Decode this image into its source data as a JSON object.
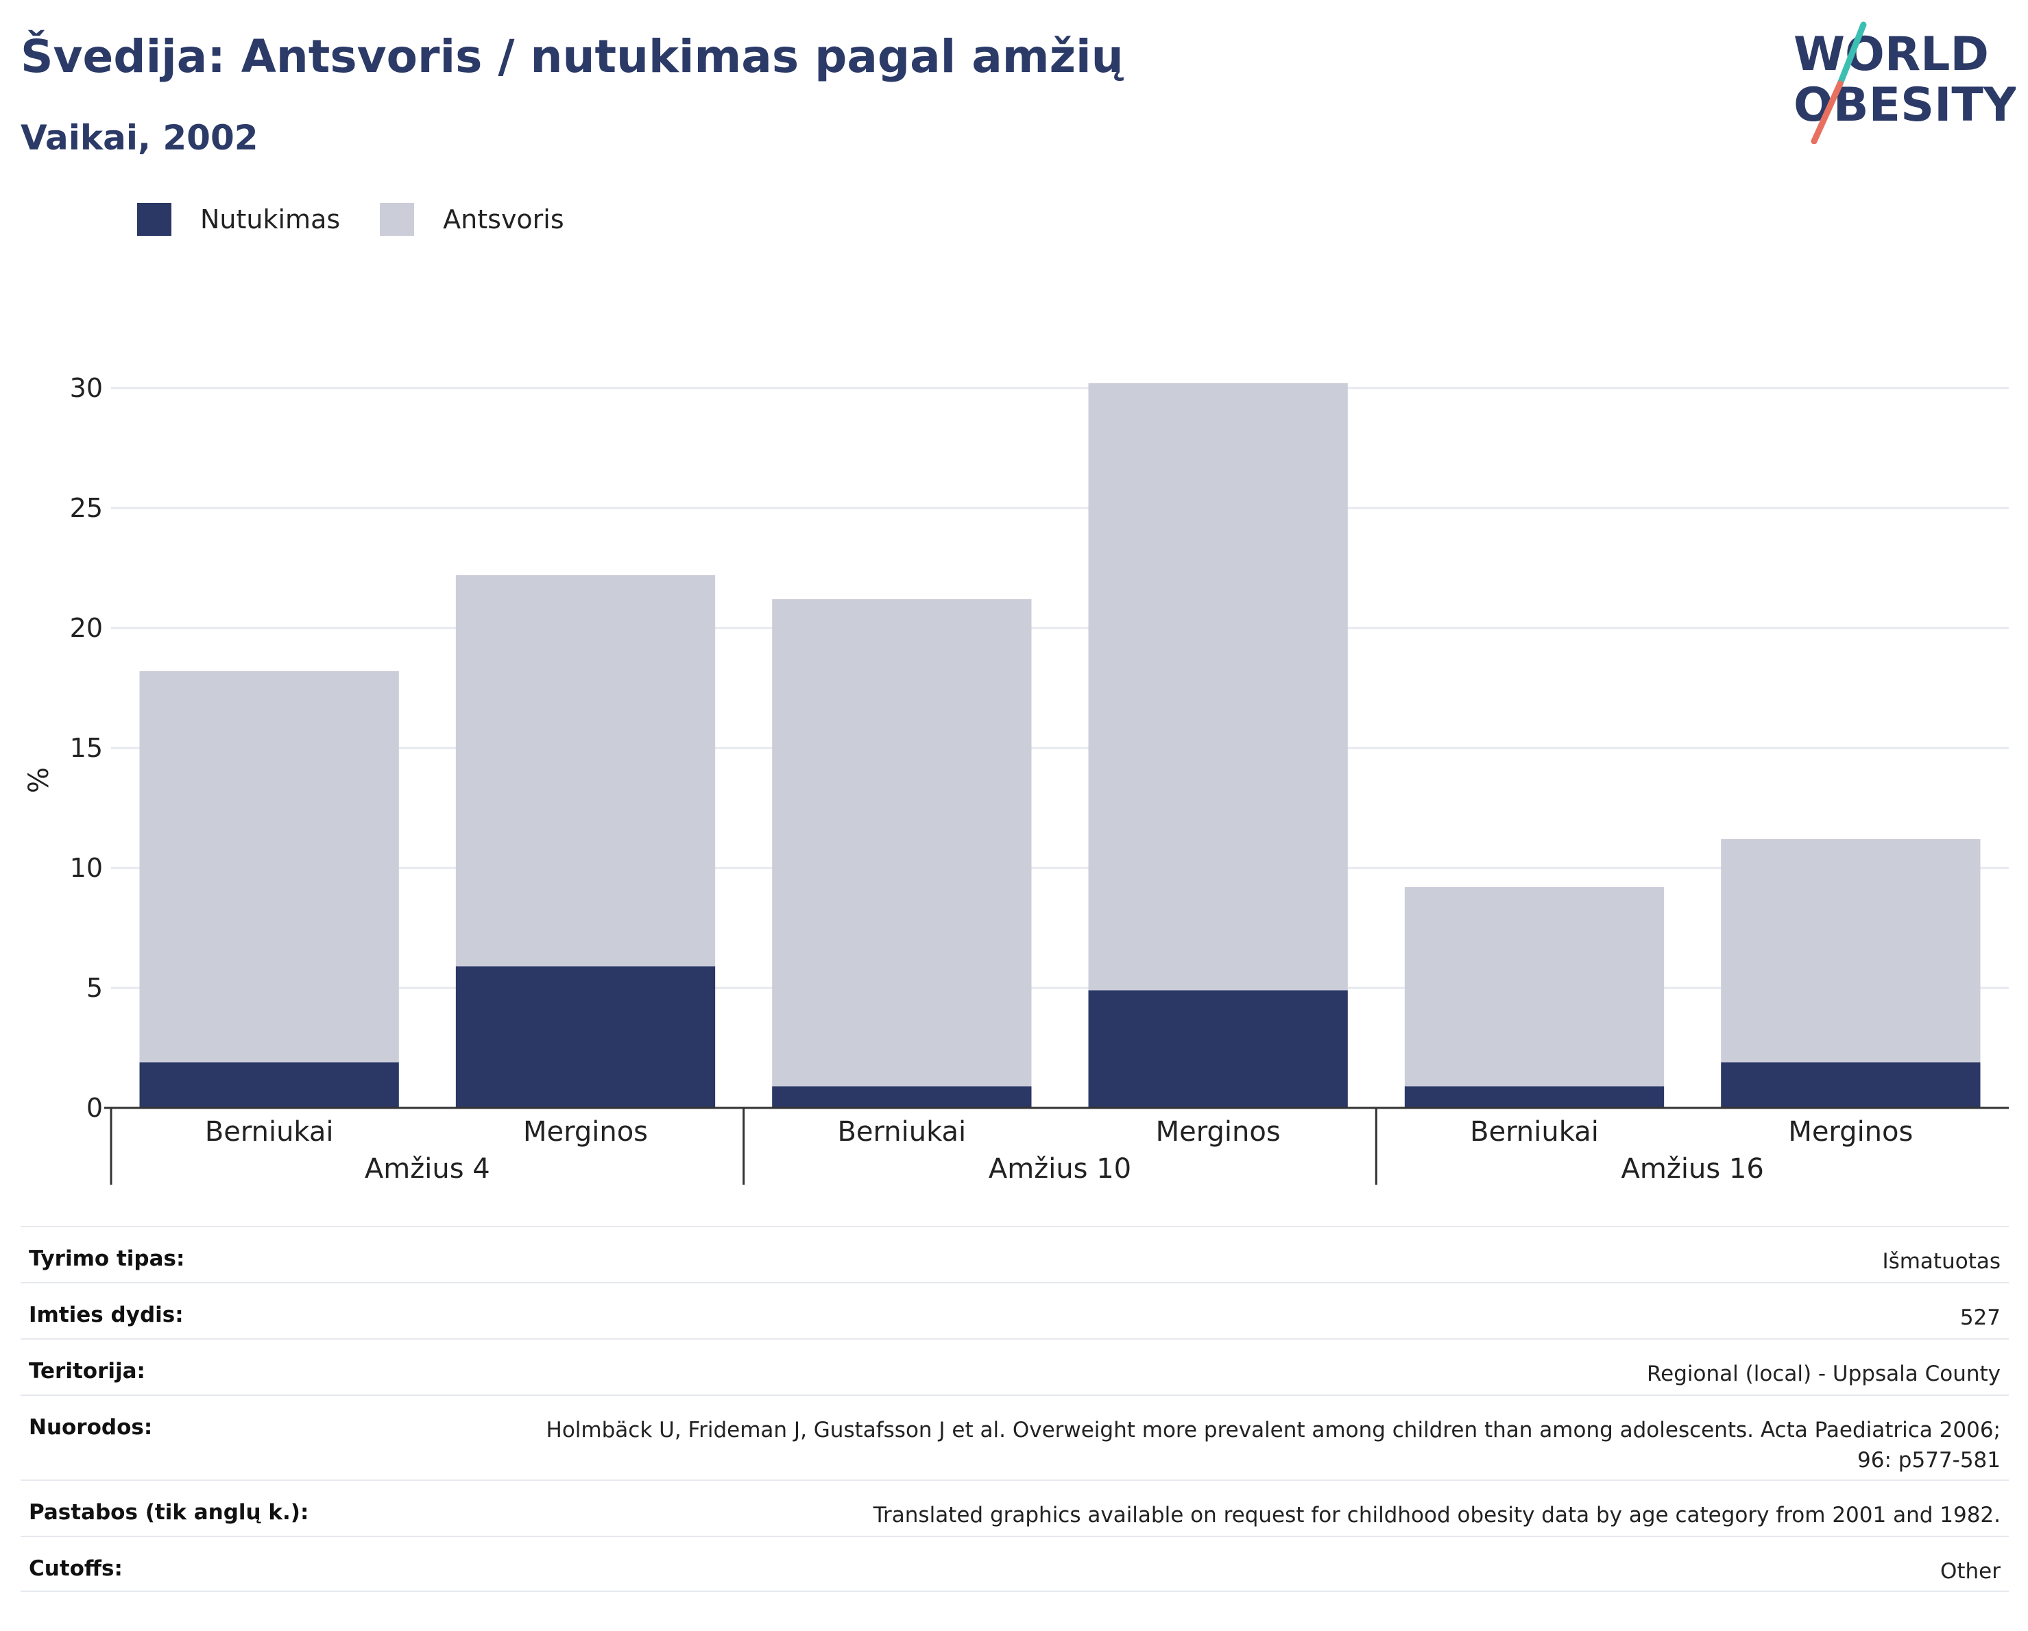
{
  "header": {
    "title": "Švedija: Antsvoris / nutukimas pagal amžių",
    "subtitle": "Vaikai, 2002"
  },
  "logo": {
    "line1": "WORLD",
    "line2": "OBESITY",
    "colors": {
      "text": "#2b3a67",
      "slash_top": "#3bbfb2",
      "slash_bottom": "#e8705f"
    }
  },
  "colors": {
    "obesity": "#2b3765",
    "overweight": "#cbcdd9",
    "grid": "#e6e8ee",
    "axis": "#333333"
  },
  "chart_data": {
    "type": "bar",
    "stacked": true,
    "ylabel": "%",
    "ylim": [
      0,
      30
    ],
    "yticks": [
      0,
      5,
      10,
      15,
      20,
      25,
      30
    ],
    "grid": true,
    "legend_position": "top-left",
    "groups": [
      {
        "label": "Amžius 4",
        "categories": [
          "Berniukai",
          "Merginos"
        ]
      },
      {
        "label": "Amžius 10",
        "categories": [
          "Berniukai",
          "Merginos"
        ]
      },
      {
        "label": "Amžius 16",
        "categories": [
          "Berniukai",
          "Merginos"
        ]
      }
    ],
    "series": [
      {
        "name": "Nutukimas",
        "color": "#2b3765",
        "values": [
          1.9,
          5.9,
          0.9,
          4.9,
          0.9,
          1.9
        ]
      },
      {
        "name": "Antsvoris",
        "color": "#cbcdd9",
        "values": [
          16.3,
          16.3,
          20.3,
          25.3,
          8.3,
          9.3
        ]
      }
    ]
  },
  "info": [
    {
      "label": "Tyrimo tipas:",
      "value": "Išmatuotas"
    },
    {
      "label": "Imties dydis:",
      "value": "527"
    },
    {
      "label": "Teritorija:",
      "value": "Regional (local) - Uppsala County"
    },
    {
      "label": "Nuorodos:",
      "value": "Holmbäck U, Frideman J, Gustafsson J et al. Overweight more prevalent among children than among adolescents. Acta Paediatrica 2006; 96: p577-581"
    },
    {
      "label": "Pastabos (tik anglų k.):",
      "value": "Translated graphics available on request for childhood obesity data by age category from 2001 and 1982."
    },
    {
      "label": "Cutoffs:",
      "value": "Other"
    }
  ]
}
